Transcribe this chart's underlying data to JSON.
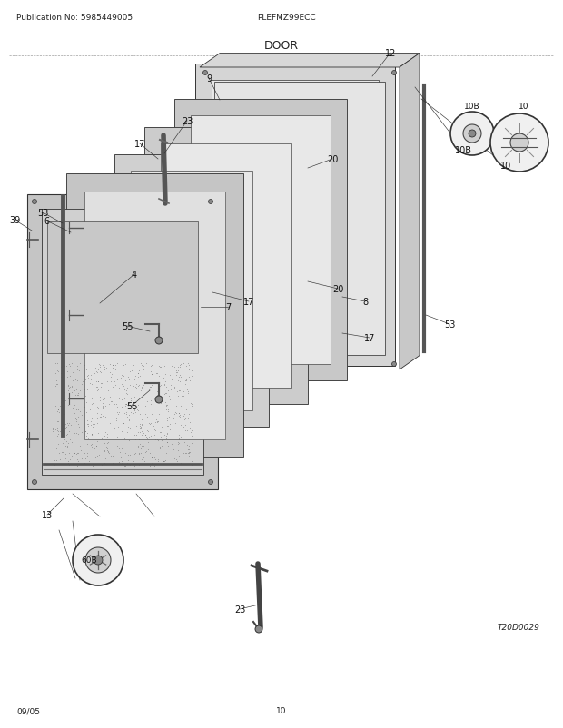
{
  "title": "DOOR",
  "pub_no": "Publication No: 5985449005",
  "model": "PLEFMZ99ECC",
  "diagram_ref": "T20D0029",
  "date": "09/05",
  "page": "10",
  "bg_color": "#ffffff"
}
